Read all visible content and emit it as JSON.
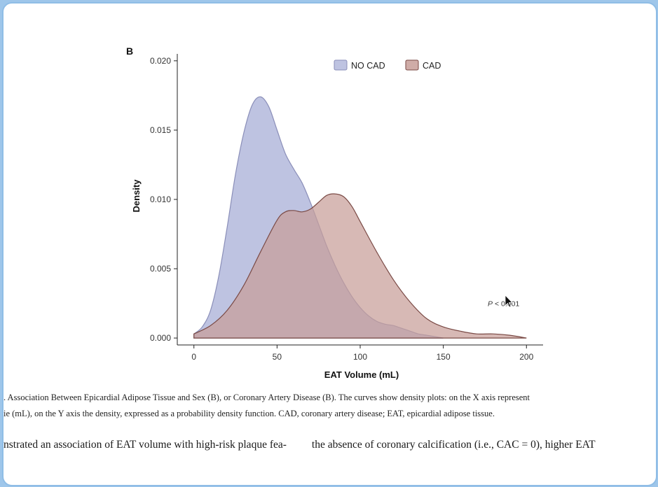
{
  "panel_label": "B",
  "chart_data": {
    "type": "area",
    "xlabel": "EAT Volume (mL)",
    "ylabel": "Density",
    "xlim": [
      -10,
      210
    ],
    "ylim": [
      -0.0005,
      0.0205
    ],
    "x_ticks": [
      0,
      50,
      100,
      150,
      200
    ],
    "y_ticks": [
      0.0,
      0.005,
      0.01,
      0.015,
      0.02
    ],
    "y_tick_labels": [
      "0.000",
      "0.005",
      "0.010",
      "0.015",
      "0.020"
    ],
    "legend_position": "top-center",
    "grid": false,
    "annotation": {
      "text_p": "P",
      "text_rest": " < 0.001",
      "x": 186,
      "y": 0.0025
    },
    "series": [
      {
        "name": "NO CAD",
        "color": "#b3b8dc",
        "line_color": "#8a8eb8",
        "x": [
          0,
          5,
          10,
          15,
          20,
          25,
          30,
          35,
          40,
          45,
          50,
          55,
          60,
          65,
          70,
          75,
          80,
          85,
          90,
          95,
          100,
          105,
          110,
          115,
          120,
          125,
          130,
          135,
          140,
          145,
          150
        ],
        "y": [
          0.0003,
          0.0008,
          0.002,
          0.0045,
          0.008,
          0.0118,
          0.0148,
          0.0168,
          0.0174,
          0.0167,
          0.015,
          0.0133,
          0.0122,
          0.0112,
          0.0098,
          0.0082,
          0.0066,
          0.0052,
          0.004,
          0.003,
          0.0022,
          0.0016,
          0.0012,
          0.001,
          0.0009,
          0.0007,
          0.0005,
          0.0003,
          0.0002,
          0.0001,
          0.0
        ]
      },
      {
        "name": "CAD",
        "color": "#c79e98",
        "line_color": "#7a4a45",
        "x": [
          0,
          10,
          20,
          30,
          40,
          50,
          55,
          60,
          65,
          70,
          75,
          80,
          85,
          90,
          95,
          100,
          110,
          120,
          130,
          140,
          150,
          160,
          170,
          180,
          190,
          200
        ],
        "y": [
          0.0003,
          0.0009,
          0.002,
          0.0038,
          0.0062,
          0.0085,
          0.0091,
          0.0092,
          0.0091,
          0.0093,
          0.0098,
          0.0103,
          0.0104,
          0.0102,
          0.0095,
          0.0084,
          0.0062,
          0.0042,
          0.0026,
          0.0014,
          0.0008,
          0.0005,
          0.0003,
          0.0003,
          0.0002,
          0.0
        ]
      }
    ]
  },
  "caption": {
    "line1": ". Association Between Epicardial Adipose Tissue and Sex (B), or Coronary Artery Disease (B). The curves show density plots: on the X axis represent",
    "line2": "ie (mL), on the Y axis the density, expressed as a probability density function. CAD, coronary artery disease; EAT, epicardial adipose tissue."
  },
  "body_text": {
    "part1": "nstrated an association of EAT volume with high-risk plaque fea-",
    "part2": "the absence of coronary calcification (i.e., CAC = 0), higher EAT"
  },
  "cursor_icon": "mouse-pointer-icon"
}
